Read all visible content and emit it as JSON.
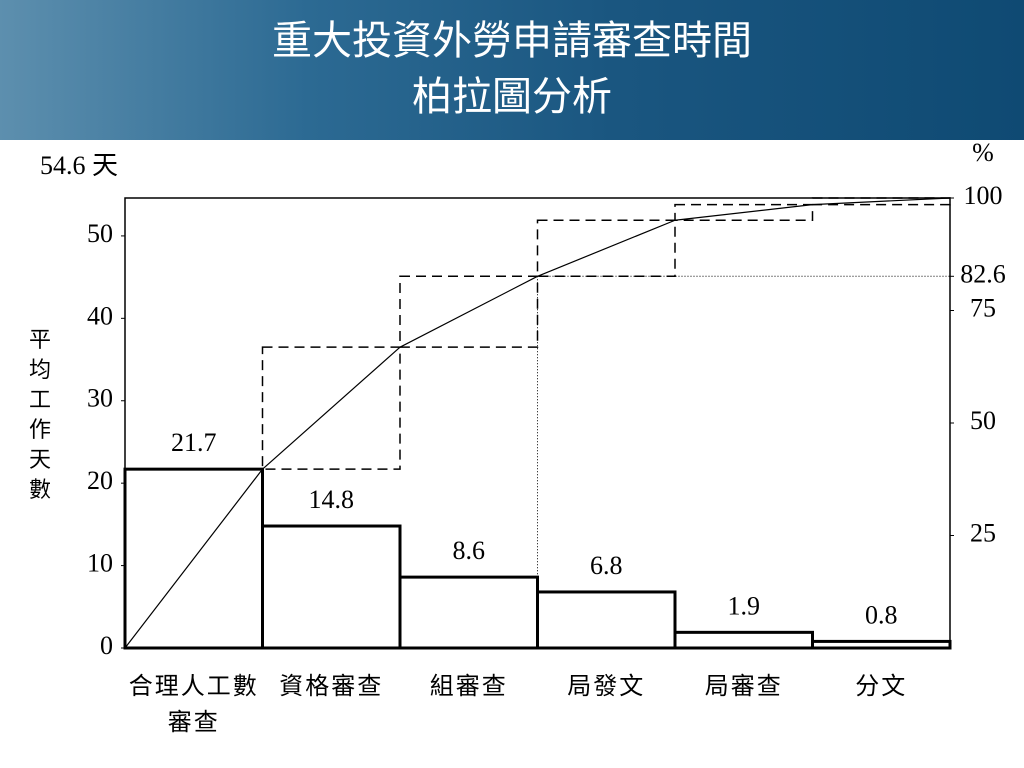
{
  "chart_data": {
    "type": "pareto",
    "title": [
      "重大投資外勞申請審查時間",
      "柏拉圖分析"
    ],
    "y_label": "平均工作天數",
    "y_top_label": "54.6 天",
    "y2_label": "%",
    "categories": [
      "合理人工數審查",
      "資格審查",
      "組審查",
      "局發文",
      "局審查",
      "分文"
    ],
    "values": [
      21.7,
      14.8,
      8.6,
      6.8,
      1.9,
      0.8
    ],
    "color": "#000000",
    "ylim": [
      0,
      54.6
    ],
    "yticks": [
      0,
      10,
      20,
      30,
      40,
      50
    ],
    "y2lim": [
      0,
      100
    ],
    "y2ticks": [
      25,
      50,
      75,
      82.6,
      100
    ]
  }
}
